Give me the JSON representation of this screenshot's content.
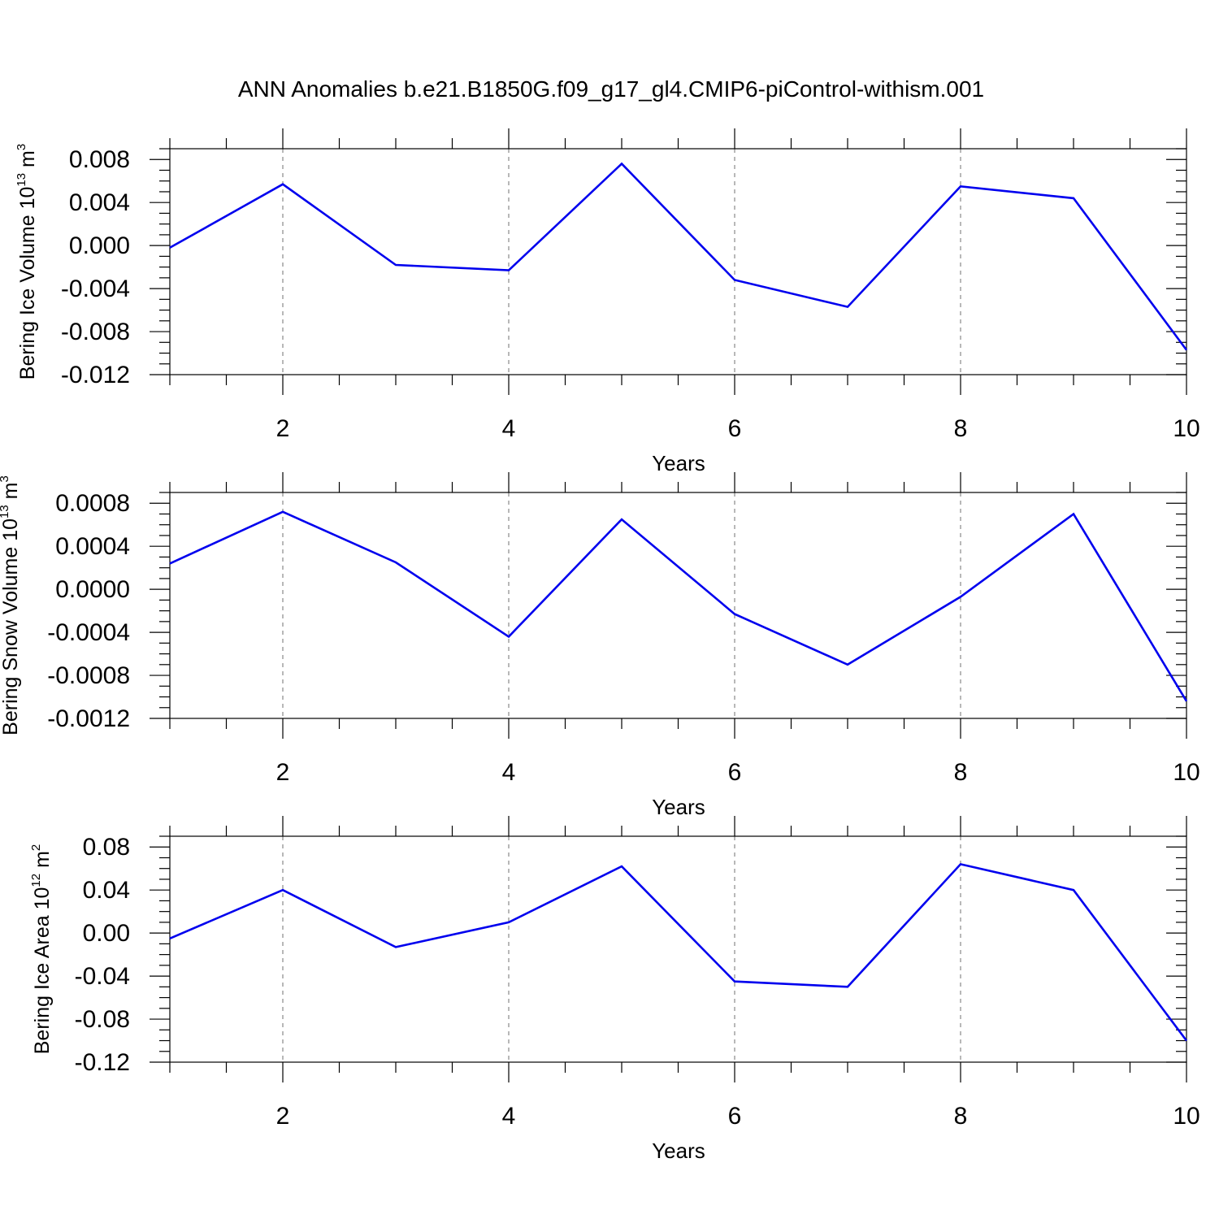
{
  "title": "ANN Anomalies b.e21.B1850G.f09_g17_gl4.CMIP6-piControl-withism.001",
  "colors": {
    "line": "#0000ee",
    "grid": "#888888",
    "axis": "#000000"
  },
  "chart_data": [
    {
      "type": "line",
      "ylabel": {
        "text": "Bering Ice Volume 10",
        "exponent": "13",
        "unit": " m",
        "unit_exponent": "3"
      },
      "xlabel": "Years",
      "x": [
        1,
        2,
        3,
        4,
        5,
        6,
        7,
        8,
        9,
        10
      ],
      "values": [
        -0.0002,
        0.0057,
        -0.0018,
        -0.0023,
        0.0076,
        -0.0032,
        -0.0057,
        0.0055,
        0.0044,
        -0.0097
      ],
      "xlim": [
        1,
        10
      ],
      "ylim": [
        -0.012,
        0.009
      ],
      "yticks": [
        -0.012,
        -0.008,
        -0.004,
        0.0,
        0.004,
        0.008
      ],
      "ytick_labels": [
        "-0.012",
        "-0.008",
        "-0.004",
        "0.000",
        "0.004",
        "0.008"
      ],
      "xticks": [
        2,
        4,
        6,
        8,
        10
      ],
      "xtick_labels": [
        "2",
        "4",
        "6",
        "8",
        "10"
      ],
      "grid": "vertical dashed at major x ticks"
    },
    {
      "type": "line",
      "ylabel": {
        "text": "Bering Snow Volume 10",
        "exponent": "13",
        "unit": " m",
        "unit_exponent": "3"
      },
      "xlabel": "Years",
      "x": [
        1,
        2,
        3,
        4,
        5,
        6,
        7,
        8,
        9,
        10
      ],
      "values": [
        0.00024,
        0.00072,
        0.00025,
        -0.00044,
        0.00065,
        -0.00023,
        -0.0007,
        -7e-05,
        0.0007,
        -0.00104
      ],
      "xlim": [
        1,
        10
      ],
      "ylim": [
        -0.0012,
        0.0009
      ],
      "yticks": [
        -0.0012,
        -0.0008,
        -0.0004,
        0.0,
        0.0004,
        0.0008
      ],
      "ytick_labels": [
        "-0.0012",
        "-0.0008",
        "-0.0004",
        "0.0000",
        "0.0004",
        "0.0008"
      ],
      "xticks": [
        2,
        4,
        6,
        8,
        10
      ],
      "xtick_labels": [
        "2",
        "4",
        "6",
        "8",
        "10"
      ],
      "grid": "vertical dashed at major x ticks"
    },
    {
      "type": "line",
      "ylabel": {
        "text": "Bering Ice Area 10",
        "exponent": "12",
        "unit": " m",
        "unit_exponent": "2"
      },
      "xlabel": "Years",
      "x": [
        1,
        2,
        3,
        4,
        5,
        6,
        7,
        8,
        9,
        10
      ],
      "values": [
        -0.005,
        0.04,
        -0.013,
        0.01,
        0.062,
        -0.045,
        -0.05,
        0.064,
        0.04,
        -0.1
      ],
      "xlim": [
        1,
        10
      ],
      "ylim": [
        -0.12,
        0.09
      ],
      "yticks": [
        -0.12,
        -0.08,
        -0.04,
        0.0,
        0.04,
        0.08
      ],
      "ytick_labels": [
        "-0.12",
        "-0.08",
        "-0.04",
        "0.00",
        "0.04",
        "0.08"
      ],
      "xticks": [
        2,
        4,
        6,
        8,
        10
      ],
      "xtick_labels": [
        "2",
        "4",
        "6",
        "8",
        "10"
      ],
      "grid": "vertical dashed at major x ticks"
    }
  ]
}
